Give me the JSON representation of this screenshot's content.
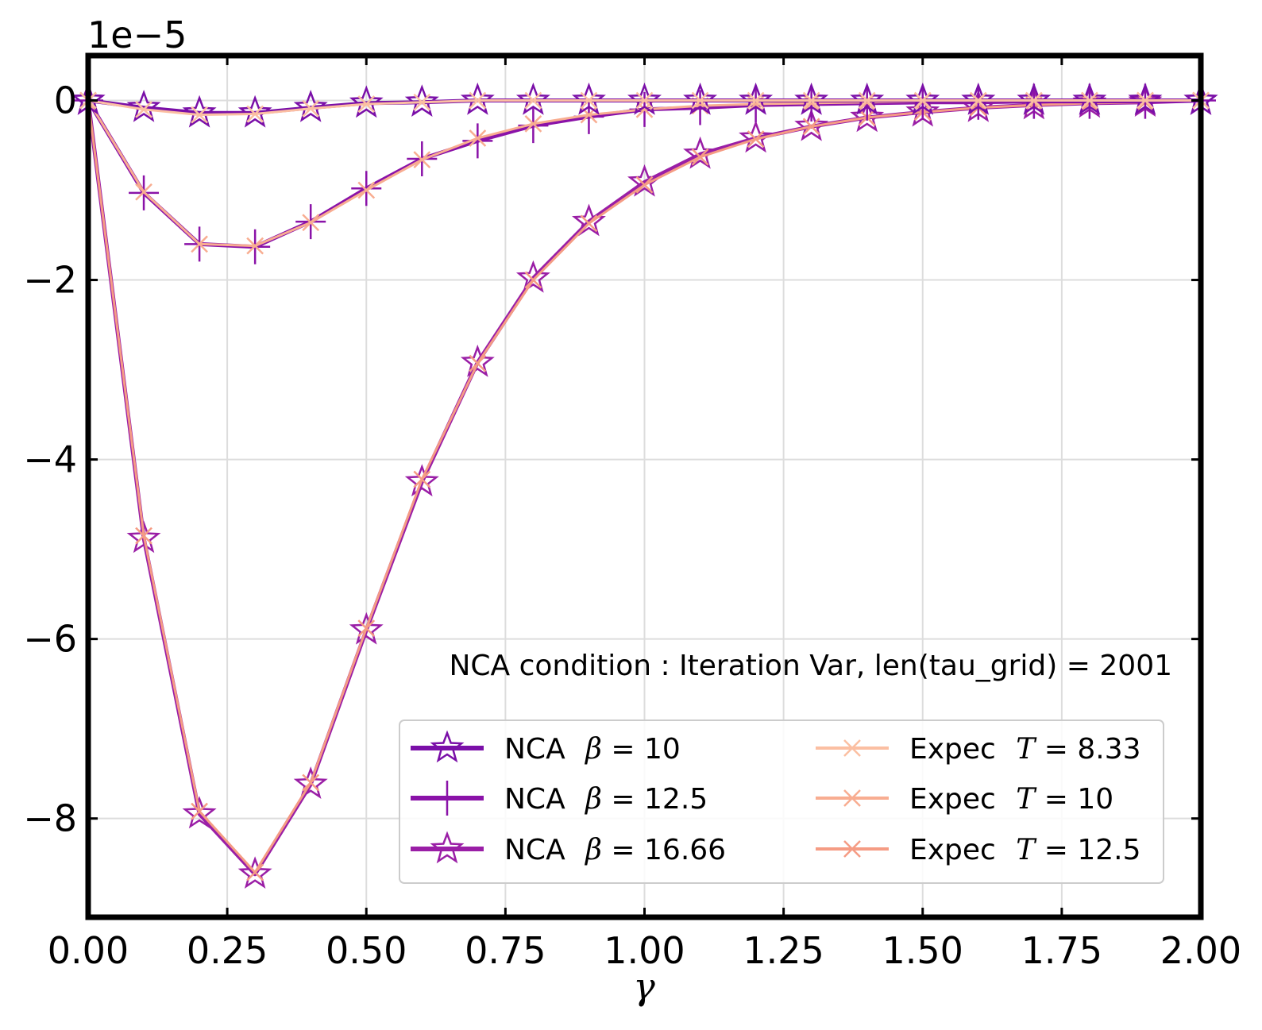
{
  "chart_data": {
    "type": "line",
    "xlabel": "γ",
    "ylabel": "",
    "offset_text": "1e−5",
    "annotation": "NCA condition : Iteration Var, len(tau_grid) = 2001",
    "xlim": [
      0.0,
      2.0
    ],
    "ylim": [
      -9.1,
      0.5
    ],
    "grid": true,
    "legend_position": "lower right",
    "x_ticks": [
      "0.00",
      "0.25",
      "0.50",
      "0.75",
      "1.00",
      "1.25",
      "1.50",
      "1.75",
      "2.00"
    ],
    "x_tick_values": [
      0,
      0.25,
      0.5,
      0.75,
      1.0,
      1.25,
      1.5,
      1.75,
      2.0
    ],
    "y_ticks": [
      "0",
      "−2",
      "−4",
      "−6",
      "−8"
    ],
    "y_tick_values": [
      0,
      -2,
      -4,
      -6,
      -8
    ],
    "x": [
      0.0,
      0.1,
      0.2,
      0.3,
      0.4,
      0.5,
      0.6,
      0.7,
      0.8,
      0.9,
      1.0,
      1.1,
      1.2,
      1.3,
      1.4,
      1.5,
      1.6,
      1.7,
      1.8,
      1.9,
      2.0
    ],
    "series": [
      {
        "name": "NCA  β = 10",
        "label_prefix": "NCA  ",
        "label_var": "β",
        "label_value": " = 10",
        "color": "#7a0fa8",
        "width": 5,
        "marker": "star",
        "values": [
          0.0,
          -0.08,
          -0.14,
          -0.14,
          -0.08,
          -0.03,
          -0.02,
          0.0,
          0.0,
          0.0,
          0.0,
          0.0,
          0.0,
          0.0,
          0.0,
          0.0,
          0.0,
          0.0,
          0.0,
          0.0,
          0.0
        ]
      },
      {
        "name": "NCA  β = 12.5",
        "label_prefix": "NCA  ",
        "label_var": "β",
        "label_value": " = 12.5",
        "color": "#8a12a8",
        "width": 5,
        "marker": "plus",
        "values": [
          0.0,
          -1.03,
          -1.6,
          -1.63,
          -1.35,
          -0.98,
          -0.65,
          -0.45,
          -0.28,
          -0.18,
          -0.1,
          -0.08,
          -0.05,
          -0.04,
          -0.03,
          -0.02,
          -0.02,
          -0.01,
          -0.01,
          -0.01,
          0.0
        ]
      },
      {
        "name": "NCA  β = 16.66",
        "label_prefix": "NCA  ",
        "label_var": "β",
        "label_value": " = 16.66",
        "color": "#9a1ea6",
        "width": 5,
        "marker": "star",
        "values": [
          0.0,
          -4.88,
          -7.95,
          -8.62,
          -7.62,
          -5.9,
          -4.25,
          -2.92,
          -1.98,
          -1.35,
          -0.91,
          -0.6,
          -0.42,
          -0.29,
          -0.19,
          -0.13,
          -0.08,
          -0.05,
          -0.03,
          -0.02,
          0.0
        ]
      },
      {
        "name": "Expec  T = 8.33",
        "label_prefix": "Expec ",
        "label_var": "T",
        "label_value": " = 8.33",
        "color": "#fbbfa2",
        "width": 3,
        "marker": "x",
        "values": [
          0.0,
          -0.1,
          -0.16,
          -0.15,
          -0.09,
          -0.04,
          -0.02,
          0.0,
          0.0,
          0.0,
          0.0,
          0.0,
          0.0,
          0.0,
          0.0,
          0.0,
          0.0,
          0.0,
          0.0,
          0.0,
          0.0
        ]
      },
      {
        "name": "Expec  T = 10",
        "label_prefix": "Expec ",
        "label_var": "T",
        "label_value": " = 10",
        "color": "#f8ad91",
        "width": 3,
        "marker": "x",
        "values": [
          0.0,
          -1.02,
          -1.6,
          -1.62,
          -1.36,
          -1.0,
          -0.66,
          -0.42,
          -0.26,
          -0.16,
          -0.1,
          -0.06,
          -0.04,
          -0.03,
          -0.02,
          -0.01,
          -0.01,
          -0.01,
          0.0,
          0.0,
          0.0
        ]
      },
      {
        "name": "Expec  T = 12.5",
        "label_prefix": "Expec ",
        "label_var": "T",
        "label_value": " = 12.5",
        "color": "#f59c84",
        "width": 3,
        "marker": "x",
        "values": [
          0.0,
          -4.85,
          -7.92,
          -8.6,
          -7.6,
          -5.88,
          -4.22,
          -2.93,
          -2.0,
          -1.37,
          -0.94,
          -0.63,
          -0.43,
          -0.29,
          -0.19,
          -0.13,
          -0.08,
          -0.05,
          -0.03,
          -0.02,
          0.0
        ]
      }
    ]
  }
}
